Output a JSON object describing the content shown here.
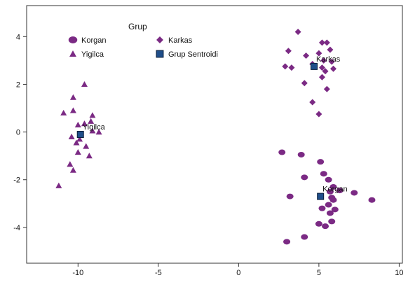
{
  "chart_data": {
    "type": "scatter",
    "title": "",
    "xlabel": "",
    "ylabel": "",
    "xlim": [
      -13.2,
      10.2
    ],
    "ylim": [
      -5.5,
      5.3
    ],
    "xticks": [
      -10,
      -5,
      0,
      5,
      10
    ],
    "yticks": [
      -4,
      -2,
      0,
      2,
      4
    ],
    "grid": false,
    "legend": {
      "title": "Grup",
      "placement": "top-left",
      "entries": [
        {
          "label": "Korgan",
          "marker": "circle"
        },
        {
          "label": "Karkas",
          "marker": "diamond"
        },
        {
          "label": "Yigilca",
          "marker": "triangle"
        },
        {
          "label": "Grup Sentroidi",
          "marker": "square"
        }
      ]
    },
    "series": [
      {
        "name": "Korgan",
        "marker": "circle",
        "color": "#7b2a84",
        "points": [
          [
            2.7,
            -0.85
          ],
          [
            3.9,
            -0.95
          ],
          [
            5.1,
            -1.25
          ],
          [
            5.3,
            -1.75
          ],
          [
            5.6,
            -2.0
          ],
          [
            4.1,
            -1.9
          ],
          [
            5.9,
            -2.3
          ],
          [
            5.7,
            -2.5
          ],
          [
            6.3,
            -2.45
          ],
          [
            5.8,
            -2.75
          ],
          [
            5.9,
            -2.85
          ],
          [
            7.2,
            -2.55
          ],
          [
            8.3,
            -2.85
          ],
          [
            3.2,
            -2.7
          ],
          [
            5.2,
            -3.2
          ],
          [
            5.7,
            -3.4
          ],
          [
            5.8,
            -3.75
          ],
          [
            5.0,
            -3.85
          ],
          [
            5.4,
            -3.95
          ],
          [
            4.1,
            -4.4
          ],
          [
            3.0,
            -4.6
          ],
          [
            5.6,
            -3.05
          ],
          [
            6.0,
            -3.25
          ]
        ]
      },
      {
        "name": "Karkas",
        "marker": "diamond",
        "color": "#7b2a84",
        "points": [
          [
            3.7,
            4.2
          ],
          [
            5.2,
            3.75
          ],
          [
            5.5,
            3.75
          ],
          [
            3.1,
            3.4
          ],
          [
            5.7,
            3.45
          ],
          [
            5.0,
            3.3
          ],
          [
            4.2,
            3.2
          ],
          [
            5.3,
            3.0
          ],
          [
            5.8,
            2.95
          ],
          [
            2.9,
            2.75
          ],
          [
            3.3,
            2.7
          ],
          [
            4.6,
            2.85
          ],
          [
            5.2,
            2.7
          ],
          [
            5.9,
            2.65
          ],
          [
            5.4,
            2.55
          ],
          [
            5.2,
            2.3
          ],
          [
            4.1,
            2.05
          ],
          [
            5.5,
            1.8
          ],
          [
            4.6,
            1.25
          ],
          [
            5.0,
            0.75
          ]
        ]
      },
      {
        "name": "Yigilca",
        "marker": "triangle",
        "color": "#7b2a84",
        "points": [
          [
            -9.6,
            2.0
          ],
          [
            -10.3,
            1.45
          ],
          [
            -10.3,
            0.9
          ],
          [
            -10.9,
            0.8
          ],
          [
            -9.1,
            0.7
          ],
          [
            -9.2,
            0.45
          ],
          [
            -9.6,
            0.35
          ],
          [
            -10.0,
            0.3
          ],
          [
            -9.1,
            0.05
          ],
          [
            -8.7,
            0.0
          ],
          [
            -10.4,
            -0.2
          ],
          [
            -9.9,
            -0.3
          ],
          [
            -10.1,
            -0.45
          ],
          [
            -9.5,
            -0.6
          ],
          [
            -10.0,
            -0.85
          ],
          [
            -9.3,
            -1.0
          ],
          [
            -10.5,
            -1.35
          ],
          [
            -10.3,
            -1.6
          ],
          [
            -11.2,
            -2.25
          ]
        ]
      }
    ],
    "centroids": [
      {
        "label": "Korgan",
        "x": 5.1,
        "y": -2.7
      },
      {
        "label": "Karkas",
        "x": 4.7,
        "y": 2.75
      },
      {
        "label": "Yigilca",
        "x": -9.85,
        "y": -0.1
      }
    ]
  }
}
